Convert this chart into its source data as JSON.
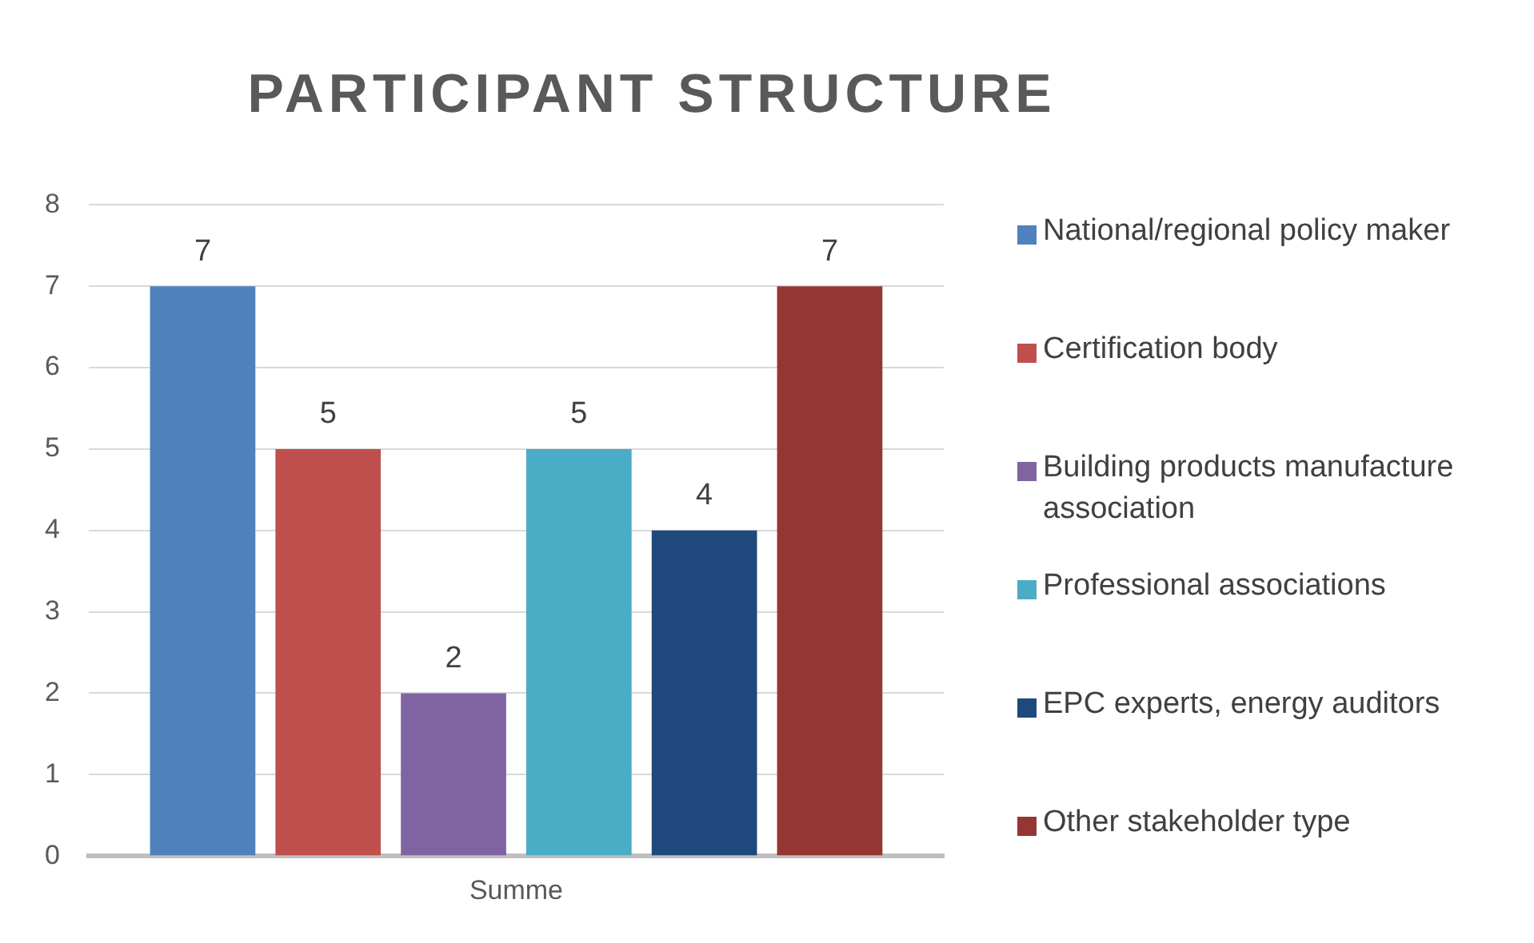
{
  "chart_data": {
    "type": "bar",
    "title": "PARTICIPANT STRUCTURE",
    "categories": [
      "Summe"
    ],
    "series": [
      {
        "name": "National/regional policy maker",
        "color": "#4f81bd",
        "values": [
          7
        ]
      },
      {
        "name": "Certification body",
        "color": "#c0504d",
        "values": [
          5
        ]
      },
      {
        "name": "Building products manufacture association",
        "color": "#8064a2",
        "values": [
          2
        ]
      },
      {
        "name": "Professional associations",
        "color": "#4bacc6",
        "values": [
          5
        ]
      },
      {
        "name": "EPC experts, energy auditors",
        "color": "#1f497d",
        "values": [
          4
        ]
      },
      {
        "name": "Other stakeholder type",
        "color": "#943634",
        "values": [
          7
        ]
      }
    ],
    "ylim": [
      0,
      8
    ],
    "yticks": [
      0,
      1,
      2,
      3,
      4,
      5,
      6,
      7,
      8
    ],
    "grid": "y",
    "legend": "right",
    "data_labels": true
  }
}
